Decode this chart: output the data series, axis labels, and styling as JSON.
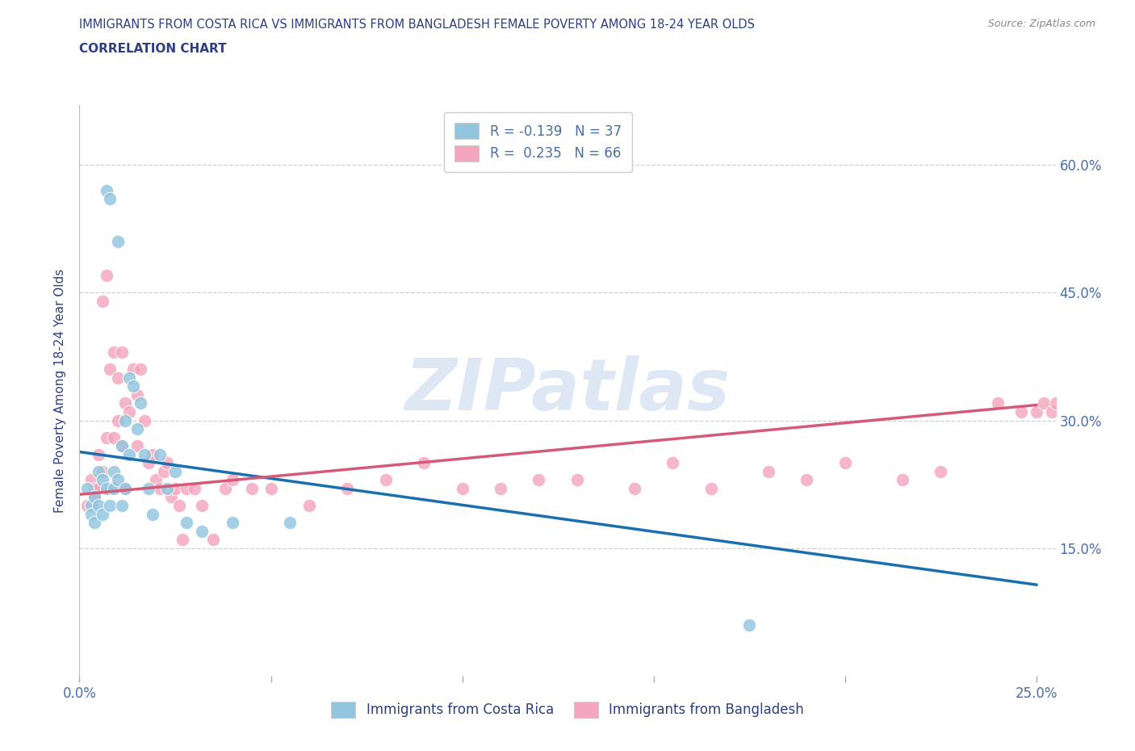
{
  "title_line1": "IMMIGRANTS FROM COSTA RICA VS IMMIGRANTS FROM BANGLADESH FEMALE POVERTY AMONG 18-24 YEAR OLDS",
  "title_line2": "CORRELATION CHART",
  "source_text": "Source: ZipAtlas.com",
  "ylabel": "Female Poverty Among 18-24 Year Olds",
  "xlim": [
    0.0,
    0.255
  ],
  "ylim": [
    0.0,
    0.67
  ],
  "xtick_vals": [
    0.0,
    0.05,
    0.1,
    0.15,
    0.2,
    0.25
  ],
  "xtick_labels": [
    "0.0%",
    "",
    "",
    "",
    "",
    "25.0%"
  ],
  "ytick_vals": [
    0.15,
    0.3,
    0.45,
    0.6
  ],
  "ytick_labels": [
    "15.0%",
    "30.0%",
    "45.0%",
    "60.0%"
  ],
  "watermark": "ZIPatlas",
  "color_blue": "#92c5de",
  "color_pink": "#f4a6be",
  "line_blue": "#1a6faf",
  "line_pink": "#d45a78",
  "title_color": "#2e4080",
  "axis_label_color": "#4a6fa5",
  "grid_color": "#d0d0d0",
  "legend_r1": "-0.139",
  "legend_n1": "37",
  "legend_r2": "0.235",
  "legend_n2": "66",
  "blue_x": [
    0.002,
    0.003,
    0.003,
    0.004,
    0.004,
    0.005,
    0.005,
    0.006,
    0.006,
    0.007,
    0.007,
    0.008,
    0.008,
    0.009,
    0.009,
    0.01,
    0.01,
    0.011,
    0.011,
    0.012,
    0.012,
    0.013,
    0.013,
    0.014,
    0.015,
    0.016,
    0.017,
    0.018,
    0.019,
    0.021,
    0.023,
    0.025,
    0.028,
    0.032,
    0.04,
    0.055,
    0.175
  ],
  "blue_y": [
    0.22,
    0.2,
    0.19,
    0.21,
    0.18,
    0.24,
    0.2,
    0.23,
    0.19,
    0.57,
    0.22,
    0.56,
    0.2,
    0.24,
    0.22,
    0.51,
    0.23,
    0.27,
    0.2,
    0.3,
    0.22,
    0.35,
    0.26,
    0.34,
    0.29,
    0.32,
    0.26,
    0.22,
    0.19,
    0.26,
    0.22,
    0.24,
    0.18,
    0.17,
    0.18,
    0.18,
    0.06
  ],
  "pink_x": [
    0.002,
    0.003,
    0.004,
    0.004,
    0.005,
    0.005,
    0.006,
    0.006,
    0.007,
    0.007,
    0.008,
    0.008,
    0.009,
    0.009,
    0.01,
    0.01,
    0.011,
    0.011,
    0.012,
    0.012,
    0.013,
    0.014,
    0.015,
    0.015,
    0.016,
    0.017,
    0.018,
    0.019,
    0.02,
    0.021,
    0.022,
    0.023,
    0.024,
    0.025,
    0.026,
    0.027,
    0.028,
    0.03,
    0.032,
    0.035,
    0.038,
    0.04,
    0.045,
    0.05,
    0.06,
    0.07,
    0.08,
    0.09,
    0.1,
    0.11,
    0.12,
    0.13,
    0.145,
    0.155,
    0.165,
    0.18,
    0.19,
    0.2,
    0.215,
    0.225,
    0.24,
    0.246,
    0.25,
    0.252,
    0.254,
    0.255
  ],
  "pink_y": [
    0.2,
    0.23,
    0.22,
    0.21,
    0.26,
    0.22,
    0.44,
    0.24,
    0.47,
    0.28,
    0.36,
    0.22,
    0.38,
    0.28,
    0.3,
    0.35,
    0.38,
    0.27,
    0.32,
    0.22,
    0.31,
    0.36,
    0.33,
    0.27,
    0.36,
    0.3,
    0.25,
    0.26,
    0.23,
    0.22,
    0.24,
    0.25,
    0.21,
    0.22,
    0.2,
    0.16,
    0.22,
    0.22,
    0.2,
    0.16,
    0.22,
    0.23,
    0.22,
    0.22,
    0.2,
    0.22,
    0.23,
    0.25,
    0.22,
    0.22,
    0.23,
    0.23,
    0.22,
    0.25,
    0.22,
    0.24,
    0.23,
    0.25,
    0.23,
    0.24,
    0.32,
    0.31,
    0.31,
    0.32,
    0.31,
    0.32
  ],
  "blue_trend_x0": 0.0,
  "blue_trend_x1": 0.25,
  "blue_trend_y0": 0.263,
  "blue_trend_y1": 0.107,
  "pink_trend_x0": 0.0,
  "pink_trend_x1": 0.25,
  "pink_trend_y0": 0.213,
  "pink_trend_y1": 0.318
}
